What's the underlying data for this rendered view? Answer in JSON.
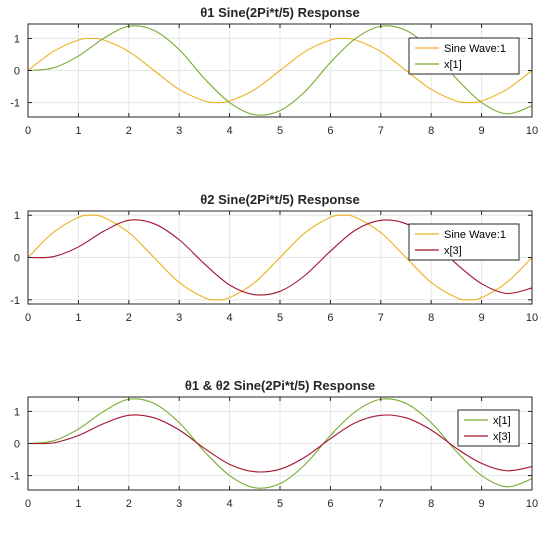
{
  "chart_data": [
    {
      "type": "line",
      "title": "θ1 Sine(2Pi*t/5) Response",
      "xlim": [
        0,
        10
      ],
      "ylim": [
        -1.45,
        1.45
      ],
      "xticks": [
        "0",
        "1",
        "2",
        "3",
        "4",
        "5",
        "6",
        "7",
        "8",
        "9",
        "10"
      ],
      "yticks": [
        "1",
        "0",
        "-1"
      ],
      "grid": true,
      "legend_placement": "top-right",
      "series": [
        {
          "name": "Sine Wave:1",
          "color": "#EDB120",
          "x": [
            0,
            0.5,
            1,
            1.25,
            1.5,
            2,
            2.5,
            3,
            3.5,
            3.75,
            4,
            4.5,
            5,
            5.5,
            6,
            6.25,
            6.5,
            7,
            7.5,
            8,
            8.5,
            8.75,
            9,
            9.5,
            10
          ],
          "y": [
            0,
            0.59,
            0.95,
            1,
            0.95,
            0.59,
            0,
            -0.59,
            -0.95,
            -1,
            -0.95,
            -0.59,
            0,
            0.59,
            0.95,
            1,
            0.95,
            0.59,
            0,
            -0.59,
            -0.95,
            -1,
            -0.95,
            -0.59,
            0
          ]
        },
        {
          "name": "x[1]",
          "color": "#77AC30",
          "x": [
            0,
            0.5,
            1,
            1.5,
            2,
            2.5,
            3,
            3.5,
            4,
            4.5,
            5,
            5.5,
            6,
            6.5,
            7,
            7.5,
            8,
            8.5,
            9,
            9.5,
            10
          ],
          "y": [
            0,
            0.08,
            0.45,
            1.0,
            1.38,
            1.25,
            0.65,
            -0.25,
            -1.0,
            -1.38,
            -1.25,
            -0.65,
            0.25,
            1.0,
            1.38,
            1.25,
            0.65,
            -0.25,
            -1.0,
            -1.35,
            -1.1
          ]
        }
      ]
    },
    {
      "type": "line",
      "title": "θ2 Sine(2Pi*t/5) Response",
      "xlim": [
        0,
        10
      ],
      "ylim": [
        -1.1,
        1.1
      ],
      "xticks": [
        "0",
        "1",
        "2",
        "3",
        "4",
        "5",
        "6",
        "7",
        "8",
        "9",
        "10"
      ],
      "yticks": [
        "1",
        "0",
        "-1"
      ],
      "grid": true,
      "legend_placement": "top-right",
      "series": [
        {
          "name": "Sine Wave:1",
          "color": "#EDB120",
          "x": [
            0,
            0.5,
            1,
            1.25,
            1.5,
            2,
            2.5,
            3,
            3.5,
            3.75,
            4,
            4.5,
            5,
            5.5,
            6,
            6.25,
            6.5,
            7,
            7.5,
            8,
            8.5,
            8.75,
            9,
            9.5,
            10
          ],
          "y": [
            0,
            0.59,
            0.95,
            1,
            0.95,
            0.59,
            0,
            -0.59,
            -0.95,
            -1,
            -0.95,
            -0.59,
            0,
            0.59,
            0.95,
            1,
            0.95,
            0.59,
            0,
            -0.59,
            -0.95,
            -1,
            -0.95,
            -0.59,
            0
          ]
        },
        {
          "name": "x[3]",
          "color": "#A2142F",
          "x": [
            0,
            0.5,
            1,
            1.5,
            2,
            2.5,
            3,
            3.5,
            4,
            4.5,
            5,
            5.5,
            6,
            6.5,
            7,
            7.5,
            8,
            8.5,
            9,
            9.5,
            10
          ],
          "y": [
            0,
            0.02,
            0.25,
            0.62,
            0.88,
            0.8,
            0.42,
            -0.15,
            -0.65,
            -0.88,
            -0.8,
            -0.42,
            0.15,
            0.65,
            0.88,
            0.8,
            0.42,
            -0.15,
            -0.62,
            -0.85,
            -0.72
          ]
        }
      ]
    },
    {
      "type": "line",
      "title": "θ1 & θ2 Sine(2Pi*t/5) Response",
      "xlim": [
        0,
        10
      ],
      "ylim": [
        -1.45,
        1.45
      ],
      "xticks": [
        "0",
        "1",
        "2",
        "3",
        "4",
        "5",
        "6",
        "7",
        "8",
        "9",
        "10"
      ],
      "yticks": [
        "1",
        "0",
        "-1"
      ],
      "grid": true,
      "legend_placement": "top-right",
      "series": [
        {
          "name": "x[1]",
          "color": "#77AC30",
          "x": [
            0,
            0.5,
            1,
            1.5,
            2,
            2.5,
            3,
            3.5,
            4,
            4.5,
            5,
            5.5,
            6,
            6.5,
            7,
            7.5,
            8,
            8.5,
            9,
            9.5,
            10
          ],
          "y": [
            0,
            0.08,
            0.45,
            1.0,
            1.38,
            1.25,
            0.65,
            -0.25,
            -1.0,
            -1.38,
            -1.25,
            -0.65,
            0.25,
            1.0,
            1.38,
            1.25,
            0.65,
            -0.25,
            -1.0,
            -1.35,
            -1.1
          ]
        },
        {
          "name": "x[3]",
          "color": "#A2142F",
          "x": [
            0,
            0.5,
            1,
            1.5,
            2,
            2.5,
            3,
            3.5,
            4,
            4.5,
            5,
            5.5,
            6,
            6.5,
            7,
            7.5,
            8,
            8.5,
            9,
            9.5,
            10
          ],
          "y": [
            0,
            0.02,
            0.25,
            0.62,
            0.88,
            0.8,
            0.42,
            -0.15,
            -0.65,
            -0.88,
            -0.8,
            -0.42,
            0.15,
            0.65,
            0.88,
            0.8,
            0.42,
            -0.15,
            -0.62,
            -0.85,
            -0.72
          ]
        }
      ]
    }
  ]
}
